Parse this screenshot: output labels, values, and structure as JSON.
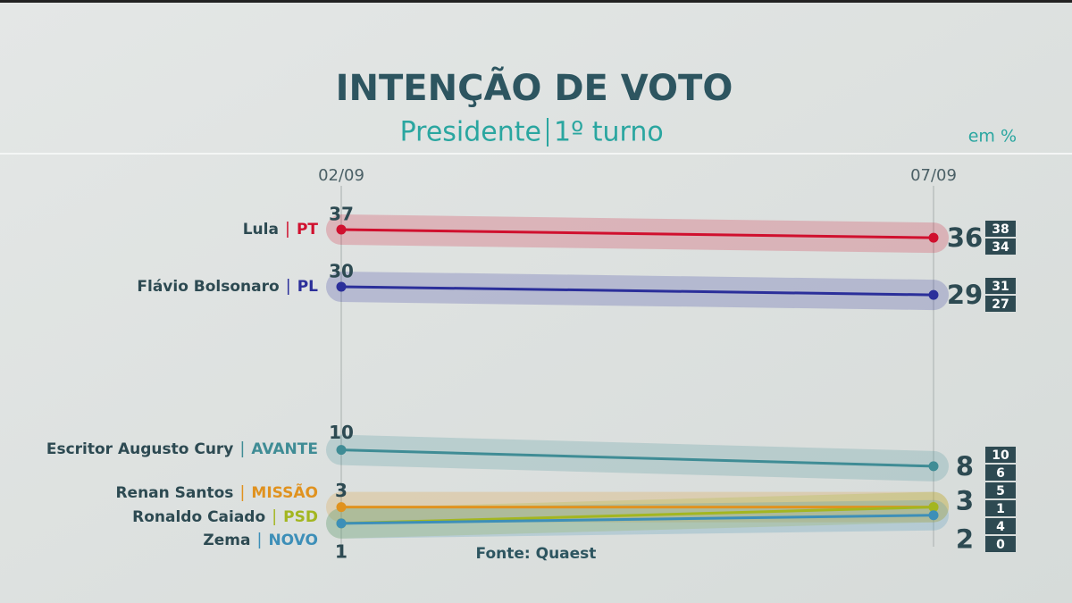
{
  "chart_data": {
    "type": "line",
    "title": "INTENÇÃO DE VOTO",
    "subtitle": [
      "Presidente",
      "1º turno"
    ],
    "unit": "em %",
    "source": "Fonte: Quaest",
    "x": [
      "02/09",
      "07/09"
    ],
    "ylim": [
      0,
      40
    ],
    "series": [
      {
        "name": "Lula",
        "party": "PT",
        "color": "#d0102e",
        "values": [
          37,
          36
        ],
        "range": [
          38,
          34
        ]
      },
      {
        "name": "Flávio Bolsonaro",
        "party": "PL",
        "color": "#2b2f9a",
        "values": [
          30,
          29
        ],
        "range": [
          31,
          27
        ]
      },
      {
        "name": "Escritor Augusto Cury",
        "party": "AVANTE",
        "color": "#3f8c95",
        "values": [
          10,
          8
        ],
        "range": [
          10,
          6
        ]
      },
      {
        "name": "Renan Santos",
        "party": "MISSÃO",
        "color": "#e0921f",
        "values": [
          3,
          3
        ],
        "range": [
          5,
          1
        ]
      },
      {
        "name": "Ronaldo Caiado",
        "party": "PSD",
        "color": "#a3b620",
        "values": [
          1,
          3
        ],
        "range": null
      },
      {
        "name": "Zema",
        "party": "NOVO",
        "color": "#3d8fb8",
        "values": [
          1,
          2
        ],
        "range": [
          4,
          0
        ]
      }
    ]
  }
}
